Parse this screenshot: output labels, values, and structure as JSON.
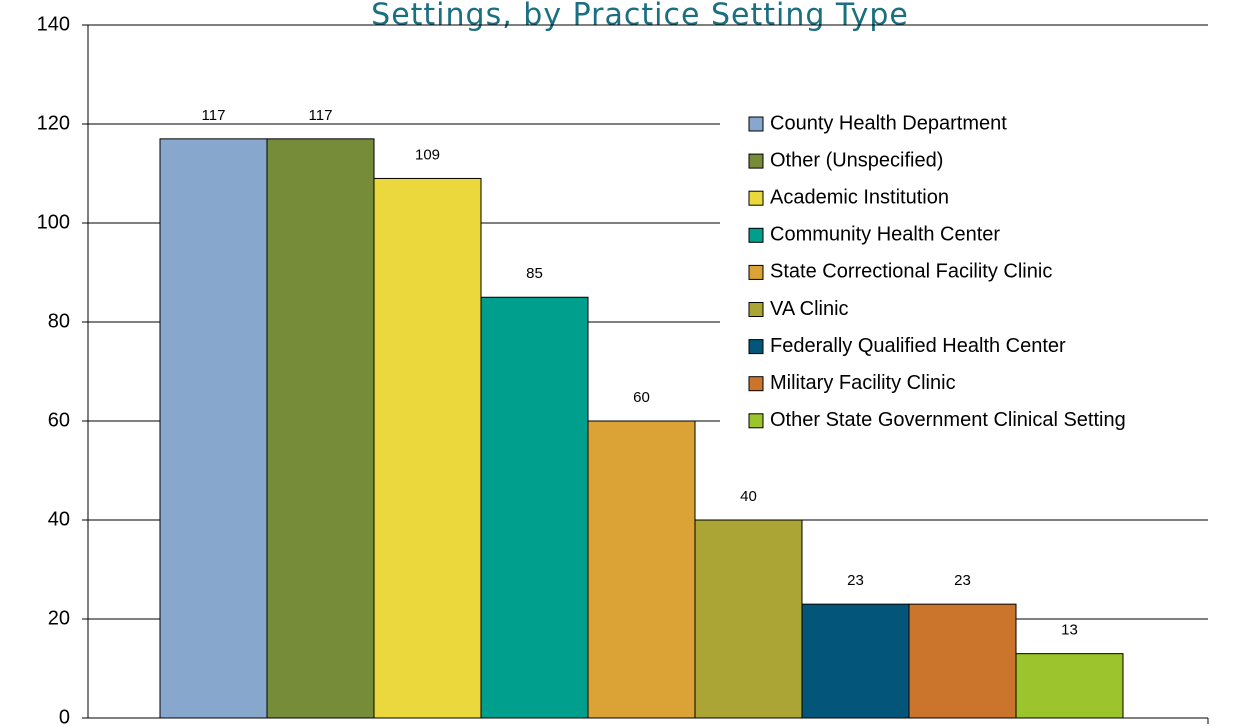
{
  "chart_data": {
    "type": "bar",
    "title": "Settings, by Practice Setting Type",
    "categories": [
      "County Health Department",
      "Other (Unspecified)",
      "Academic Institution",
      "Community Health Center",
      "State Correctional Facility Clinic",
      "VA Clinic",
      "Federally Qualified Health Center",
      "Military Facility Clinic",
      "Other State Government Clinical Setting"
    ],
    "values": [
      117,
      117,
      109,
      85,
      60,
      40,
      23,
      23,
      13
    ],
    "colors": [
      "#87a8cc",
      "#778c38",
      "#ebd83c",
      "#009e8c",
      "#dba235",
      "#aaa535",
      "#03567a",
      "#cb752c",
      "#9cc42c"
    ],
    "ylim": [
      0,
      140
    ],
    "yticks": [
      0,
      20,
      40,
      60,
      80,
      100,
      120,
      140
    ],
    "grid": true,
    "legend": "right"
  }
}
